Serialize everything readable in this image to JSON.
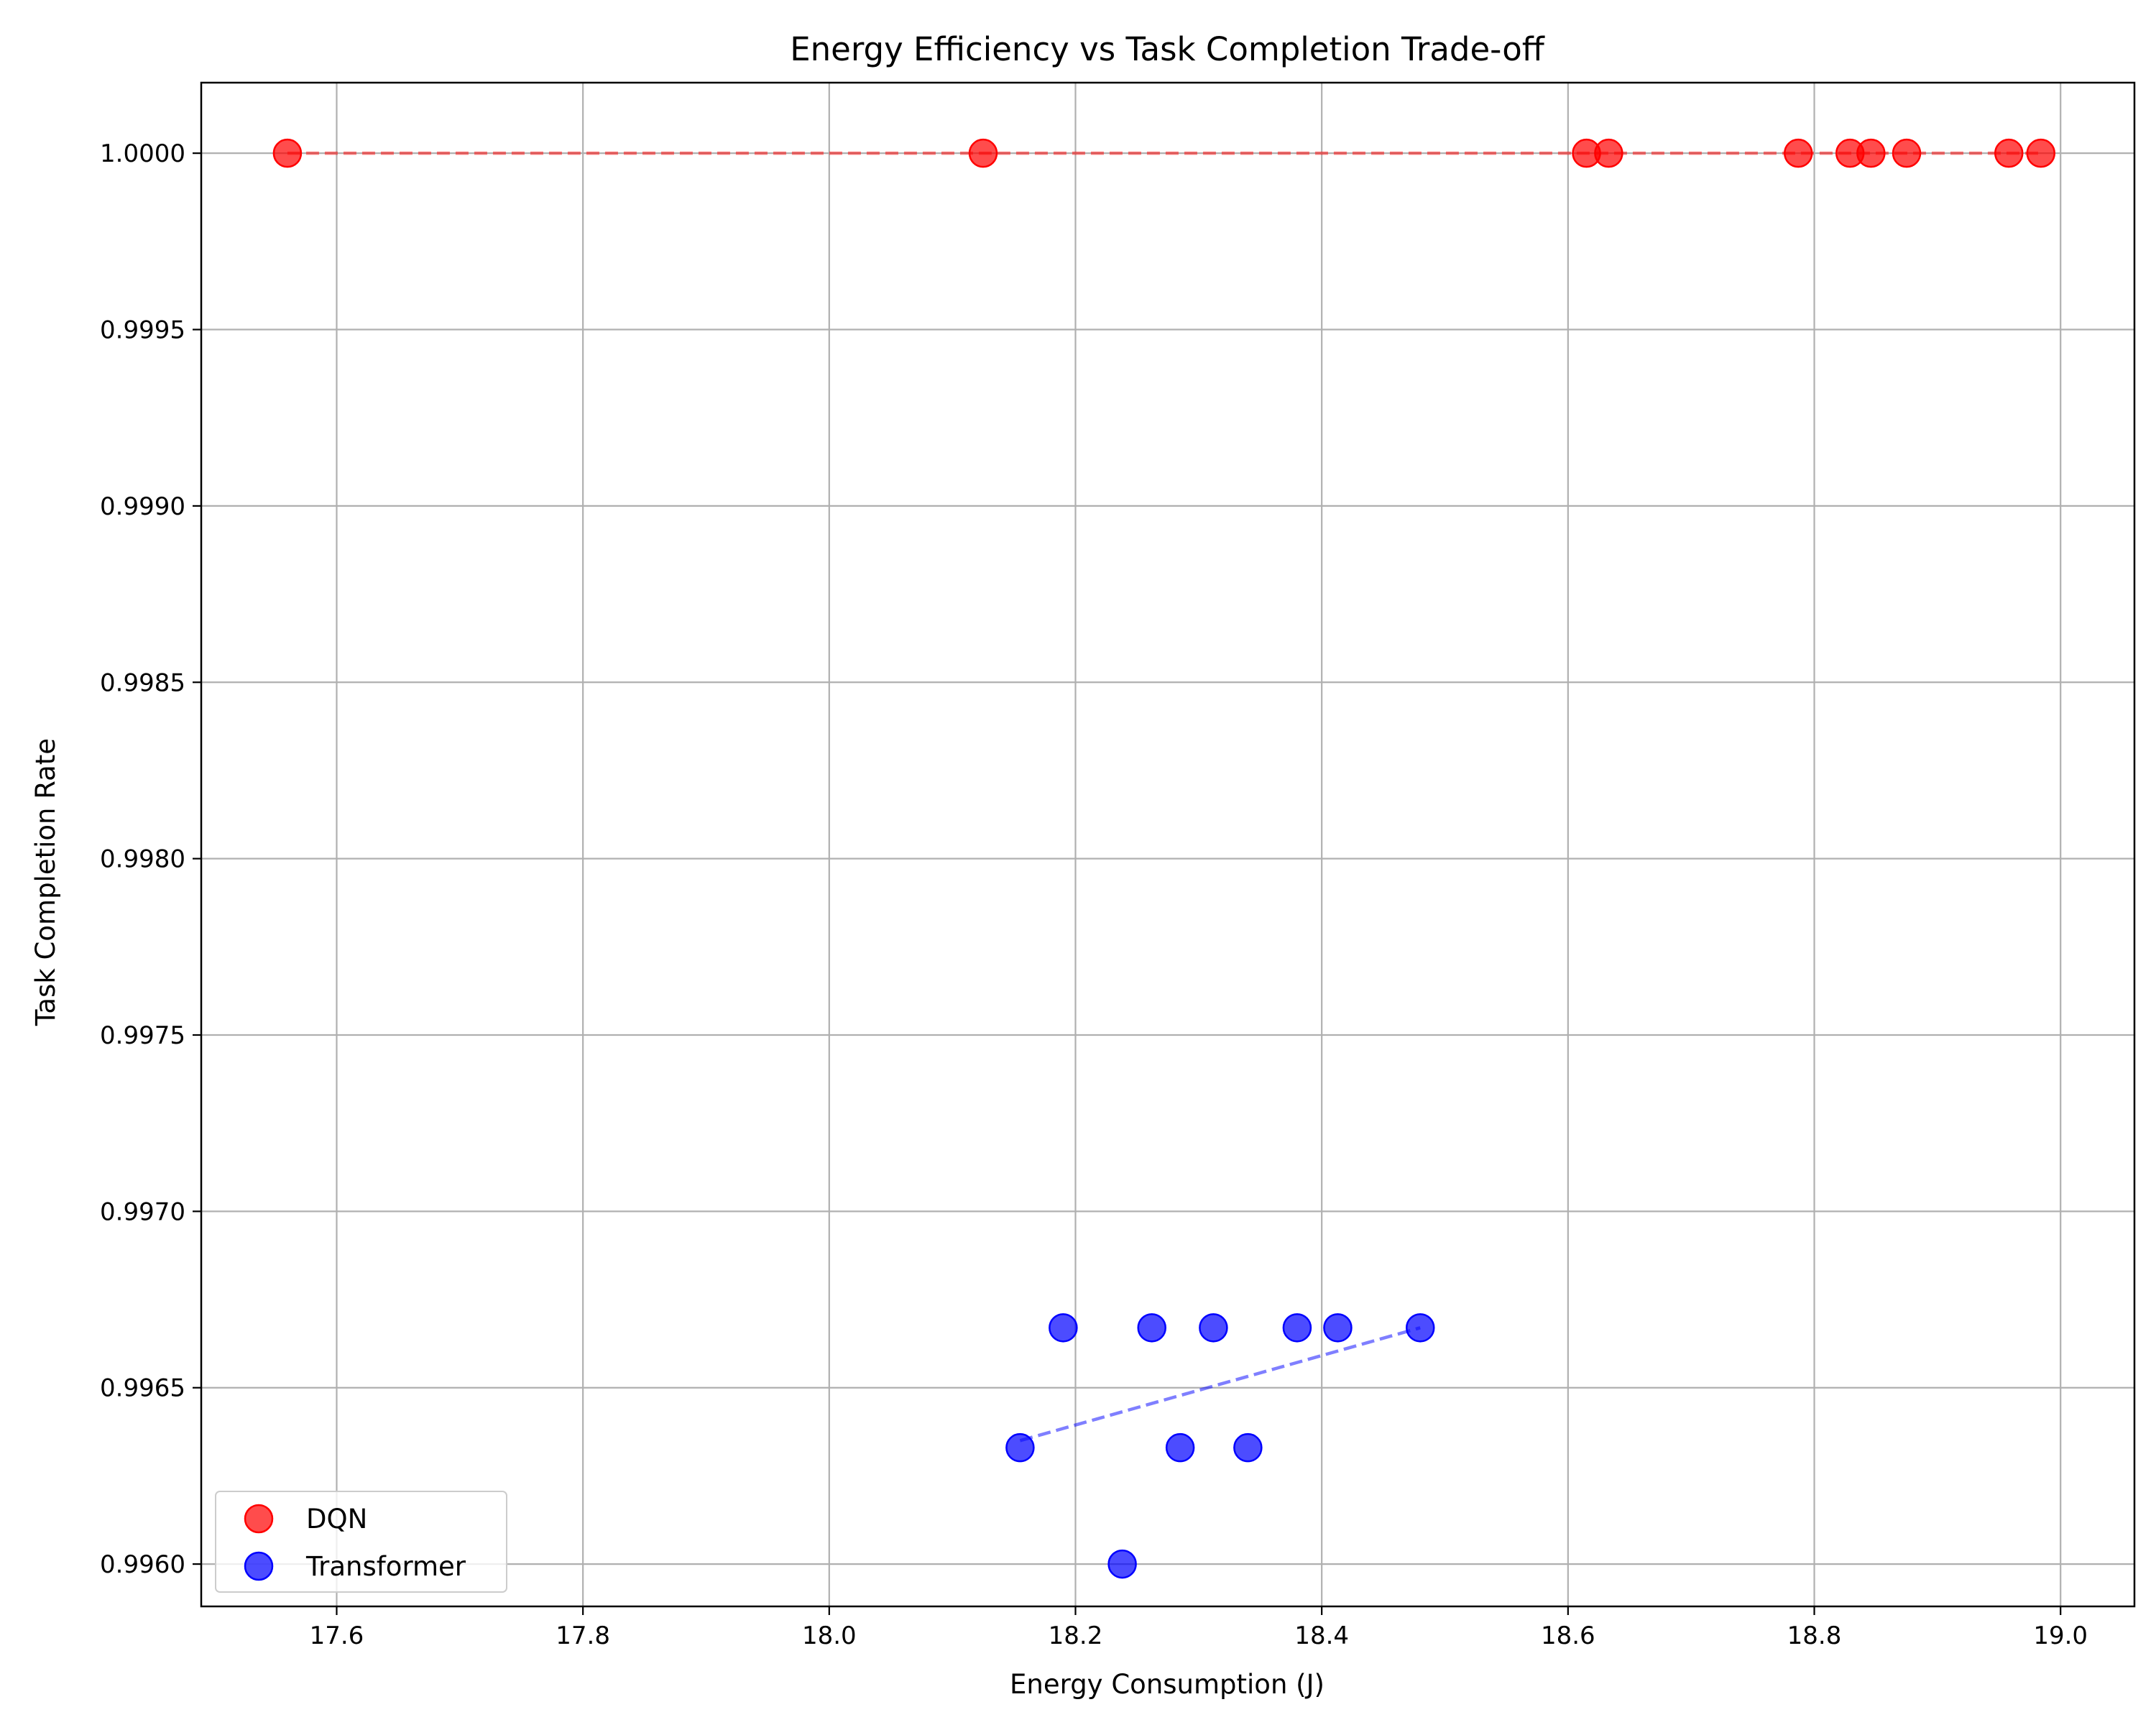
{
  "chart_data": {
    "type": "scatter",
    "title": "Energy Efficiency vs Task Completion Trade-off",
    "xlabel": "Energy Consumption (J)",
    "ylabel": "Task Completion Rate",
    "xlim": [
      17.49,
      19.06
    ],
    "ylim": [
      0.99588,
      1.0002
    ],
    "xticks": [
      "17.6",
      "17.8",
      "18.0",
      "18.2",
      "18.4",
      "18.6",
      "18.8",
      "19.0"
    ],
    "xtick_values": [
      17.6,
      17.8,
      18.0,
      18.2,
      18.4,
      18.6,
      18.8,
      19.0
    ],
    "yticks": [
      "0.9960",
      "0.9965",
      "0.9970",
      "0.9975",
      "0.9980",
      "0.9985",
      "0.9990",
      "0.9995",
      "1.0000"
    ],
    "ytick_values": [
      0.996,
      0.9965,
      0.997,
      0.9975,
      0.998,
      0.9985,
      0.999,
      0.9995,
      1.0
    ],
    "grid": true,
    "legend_position": "lower-left",
    "series": [
      {
        "name": "DQN",
        "color": "#ff0000",
        "points": [
          {
            "x": 17.56,
            "y": 1.0
          },
          {
            "x": 18.125,
            "y": 1.0
          },
          {
            "x": 18.615,
            "y": 1.0
          },
          {
            "x": 18.633,
            "y": 1.0
          },
          {
            "x": 18.787,
            "y": 1.0
          },
          {
            "x": 18.829,
            "y": 1.0
          },
          {
            "x": 18.846,
            "y": 1.0
          },
          {
            "x": 18.875,
            "y": 1.0
          },
          {
            "x": 18.958,
            "y": 1.0
          },
          {
            "x": 18.984,
            "y": 1.0
          }
        ],
        "trend": {
          "x": [
            17.56,
            18.984
          ],
          "y": [
            1.0,
            1.0
          ]
        }
      },
      {
        "name": "Transformer",
        "color": "#0000ff",
        "points": [
          {
            "x": 18.155,
            "y": 0.99633
          },
          {
            "x": 18.19,
            "y": 0.99667
          },
          {
            "x": 18.238,
            "y": 0.996
          },
          {
            "x": 18.262,
            "y": 0.99667
          },
          {
            "x": 18.285,
            "y": 0.99633
          },
          {
            "x": 18.312,
            "y": 0.99667
          },
          {
            "x": 18.34,
            "y": 0.99633
          },
          {
            "x": 18.38,
            "y": 0.99667
          },
          {
            "x": 18.413,
            "y": 0.99667
          },
          {
            "x": 18.48,
            "y": 0.99667
          }
        ],
        "trend": {
          "x": [
            18.155,
            18.48
          ],
          "y": [
            0.99635,
            0.99667
          ]
        }
      }
    ]
  }
}
